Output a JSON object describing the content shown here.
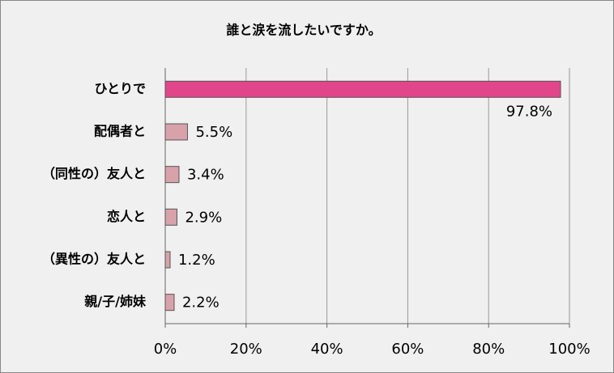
{
  "chart_data": {
    "type": "bar",
    "orientation": "horizontal",
    "title": "誰と涙を流したいですか。",
    "categories": [
      "ひとりで",
      "配偶者と",
      "（同性の）友人と",
      "恋人と",
      "（異性の）友人と",
      "親/子/姉妹"
    ],
    "values": [
      97.8,
      5.5,
      3.4,
      2.9,
      1.2,
      2.2
    ],
    "value_labels": [
      "97.8%",
      "5.5%",
      "3.4%",
      "2.9%",
      "1.2%",
      "2.2%"
    ],
    "colors": [
      "#e2468a",
      "#d8a2aa",
      "#d8a2aa",
      "#d8a2aa",
      "#d8a2aa",
      "#d8a2aa"
    ],
    "xlim": [
      0,
      100
    ],
    "xticks": [
      {
        "value": 0,
        "label": "0%"
      },
      {
        "value": 20,
        "label": "20%"
      },
      {
        "value": 40,
        "label": "40%"
      },
      {
        "value": 60,
        "label": "60%"
      },
      {
        "value": 80,
        "label": "80%"
      },
      {
        "value": 100,
        "label": "100%"
      }
    ],
    "grid": true
  }
}
